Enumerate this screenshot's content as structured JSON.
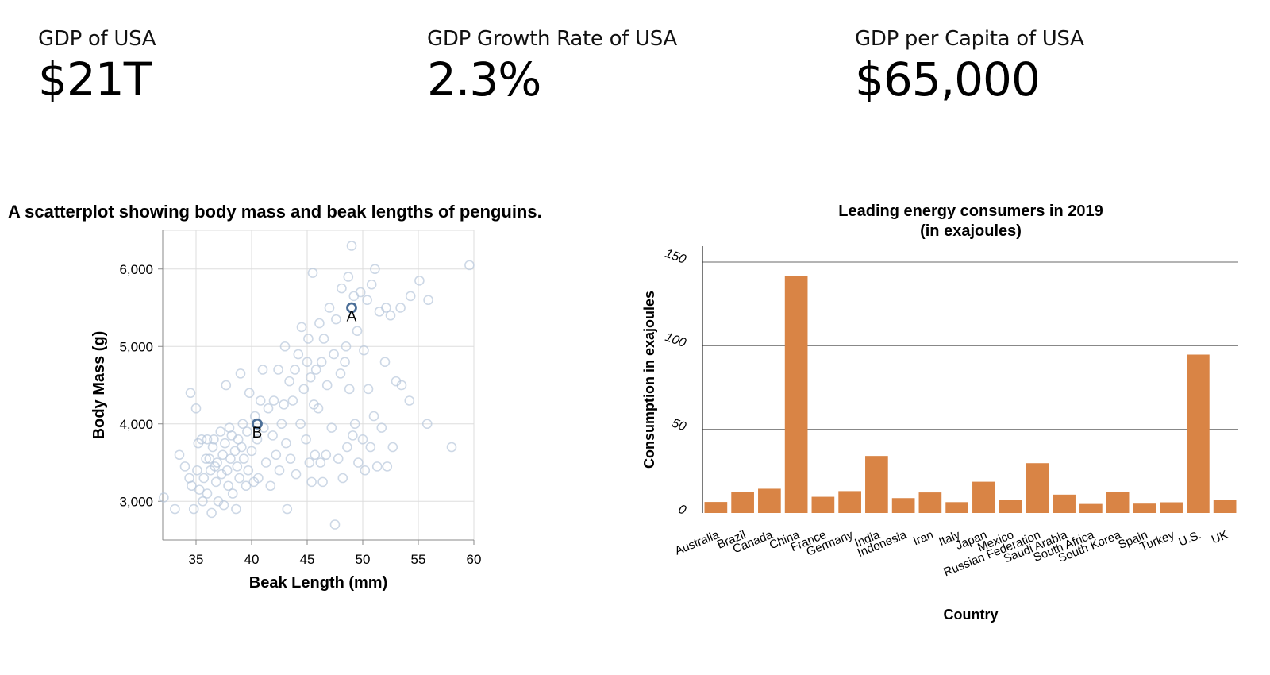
{
  "kpis": [
    {
      "label": "GDP of USA",
      "value": "$21T"
    },
    {
      "label": "GDP Growth Rate of USA",
      "value": "2.3%"
    },
    {
      "label": "GDP per Capita of USA",
      "value": "$65,000"
    }
  ],
  "colors": {
    "scatter_point": "#b8c8dc",
    "scatter_highlight": "#4c6f98",
    "bar": "#d98445",
    "grid": "#dddddd",
    "bar_grid": "#888888"
  },
  "chart_data": [
    {
      "type": "scatter",
      "title": "A scatterplot showing body mass and beak lengths of penguins.",
      "xlabel": "Beak Length (mm)",
      "ylabel": "Body Mass (g)",
      "xlim": [
        32,
        60
      ],
      "ylim": [
        2500,
        6500
      ],
      "xticks": [
        35,
        40,
        45,
        50,
        55,
        60
      ],
      "yticks": [
        3000,
        4000,
        5000,
        6000
      ],
      "ytick_labels": [
        "3,000",
        "4,000",
        "5,000",
        "6,000"
      ],
      "grid": true,
      "highlights": [
        {
          "label": "A",
          "x": 49,
          "y": 5500
        },
        {
          "label": "B",
          "x": 40.5,
          "y": 4000
        }
      ],
      "points": [
        [
          32.1,
          3050
        ],
        [
          33.1,
          2900
        ],
        [
          33.5,
          3600
        ],
        [
          34.0,
          3450
        ],
        [
          34.4,
          3300
        ],
        [
          34.5,
          4400
        ],
        [
          34.6,
          3200
        ],
        [
          34.8,
          2900
        ],
        [
          35.0,
          4200
        ],
        [
          35.1,
          3400
        ],
        [
          35.2,
          3750
        ],
        [
          35.3,
          3150
        ],
        [
          35.5,
          3800
        ],
        [
          35.6,
          3000
        ],
        [
          35.7,
          3300
        ],
        [
          35.9,
          3550
        ],
        [
          36.0,
          3800
        ],
        [
          36.0,
          3100
        ],
        [
          36.2,
          3550
        ],
        [
          36.3,
          3400
        ],
        [
          36.4,
          2850
        ],
        [
          36.5,
          3700
        ],
        [
          36.6,
          3800
        ],
        [
          36.7,
          3450
        ],
        [
          36.8,
          3250
        ],
        [
          36.9,
          3500
        ],
        [
          37.0,
          3000
        ],
        [
          37.2,
          3900
        ],
        [
          37.3,
          3350
        ],
        [
          37.4,
          3600
        ],
        [
          37.5,
          2950
        ],
        [
          37.6,
          3750
        ],
        [
          37.7,
          4500
        ],
        [
          37.8,
          3400
        ],
        [
          37.9,
          3200
        ],
        [
          38.0,
          3950
        ],
        [
          38.1,
          3550
        ],
        [
          38.2,
          3850
        ],
        [
          38.3,
          3100
        ],
        [
          38.5,
          3650
        ],
        [
          38.6,
          2900
        ],
        [
          38.7,
          3450
        ],
        [
          38.8,
          3800
        ],
        [
          38.9,
          3300
        ],
        [
          39.0,
          4650
        ],
        [
          39.1,
          3700
        ],
        [
          39.2,
          4000
        ],
        [
          39.3,
          3550
        ],
        [
          39.5,
          3200
        ],
        [
          39.6,
          3900
        ],
        [
          39.7,
          3400
        ],
        [
          39.8,
          4400
        ],
        [
          40.0,
          3650
        ],
        [
          40.2,
          3250
        ],
        [
          40.3,
          4100
        ],
        [
          40.5,
          3800
        ],
        [
          40.6,
          3300
        ],
        [
          40.8,
          4300
        ],
        [
          41.0,
          4700
        ],
        [
          41.1,
          3950
        ],
        [
          41.3,
          3500
        ],
        [
          41.5,
          4200
        ],
        [
          41.7,
          3200
        ],
        [
          41.9,
          3850
        ],
        [
          42.0,
          4300
        ],
        [
          42.2,
          3600
        ],
        [
          42.4,
          4700
        ],
        [
          42.5,
          3400
        ],
        [
          42.7,
          4000
        ],
        [
          42.9,
          4250
        ],
        [
          43.0,
          5000
        ],
        [
          43.1,
          3750
        ],
        [
          43.2,
          2900
        ],
        [
          43.4,
          4550
        ],
        [
          43.5,
          3550
        ],
        [
          43.7,
          4300
        ],
        [
          43.9,
          4700
        ],
        [
          44.0,
          3350
        ],
        [
          44.2,
          4900
        ],
        [
          44.4,
          4000
        ],
        [
          44.5,
          5250
        ],
        [
          44.7,
          4450
        ],
        [
          44.9,
          3800
        ],
        [
          45.0,
          4800
        ],
        [
          45.1,
          5100
        ],
        [
          45.2,
          3500
        ],
        [
          45.3,
          4600
        ],
        [
          45.4,
          3250
        ],
        [
          45.5,
          5950
        ],
        [
          45.6,
          4250
        ],
        [
          45.7,
          3600
        ],
        [
          45.8,
          4700
        ],
        [
          46.0,
          4200
        ],
        [
          46.1,
          5300
        ],
        [
          46.2,
          3500
        ],
        [
          46.3,
          4800
        ],
        [
          46.4,
          3250
        ],
        [
          46.5,
          5100
        ],
        [
          46.7,
          3600
        ],
        [
          46.8,
          4500
        ],
        [
          47.0,
          5500
        ],
        [
          47.2,
          3950
        ],
        [
          47.4,
          4900
        ],
        [
          47.5,
          2700
        ],
        [
          47.6,
          5350
        ],
        [
          47.8,
          3550
        ],
        [
          48.0,
          4650
        ],
        [
          48.1,
          5750
        ],
        [
          48.2,
          3300
        ],
        [
          48.4,
          4800
        ],
        [
          48.5,
          5000
        ],
        [
          48.6,
          3700
        ],
        [
          48.7,
          5900
        ],
        [
          48.8,
          4450
        ],
        [
          49.0,
          6300
        ],
        [
          49.1,
          3850
        ],
        [
          49.2,
          5650
        ],
        [
          49.3,
          4000
        ],
        [
          49.5,
          5200
        ],
        [
          49.6,
          3500
        ],
        [
          49.8,
          5700
        ],
        [
          50.0,
          3800
        ],
        [
          50.1,
          4950
        ],
        [
          50.2,
          3400
        ],
        [
          50.4,
          5600
        ],
        [
          50.5,
          4450
        ],
        [
          50.7,
          3700
        ],
        [
          50.8,
          5800
        ],
        [
          51.0,
          4100
        ],
        [
          51.1,
          6000
        ],
        [
          51.3,
          3450
        ],
        [
          51.5,
          5450
        ],
        [
          51.7,
          3950
        ],
        [
          52.0,
          4800
        ],
        [
          52.1,
          5500
        ],
        [
          52.2,
          3450
        ],
        [
          52.5,
          5400
        ],
        [
          52.7,
          3700
        ],
        [
          53.0,
          4550
        ],
        [
          53.4,
          5500
        ],
        [
          53.5,
          4500
        ],
        [
          54.2,
          4300
        ],
        [
          54.3,
          5650
        ],
        [
          55.1,
          5850
        ],
        [
          55.8,
          4000
        ],
        [
          55.9,
          5600
        ],
        [
          58.0,
          3700
        ],
        [
          59.6,
          6050
        ]
      ]
    },
    {
      "type": "bar",
      "title": [
        "Leading energy consumers in 2019",
        "(in exajoules)"
      ],
      "xlabel": "Country",
      "ylabel": "Consumption in exajoules",
      "ylim": [
        0,
        150
      ],
      "yticks": [
        0,
        50,
        100,
        150
      ],
      "ytick_labels": [
        "0",
        "50",
        "100",
        "150"
      ],
      "grid": true,
      "categories": [
        "Australia",
        "Brazil",
        "Canada",
        "China",
        "France",
        "Germany",
        "India",
        "Indonesia",
        "Iran",
        "Italy",
        "Japan",
        "Mexico",
        "Russian Federation",
        "Saudi Arabia",
        "South Africa",
        "South Korea",
        "Spain",
        "Turkey",
        "U.S.",
        "UK"
      ],
      "values": [
        6.6,
        12.6,
        14.5,
        141.7,
        9.7,
        13.1,
        34.1,
        8.9,
        12.3,
        6.5,
        18.7,
        7.7,
        29.8,
        11.0,
        5.4,
        12.4,
        5.6,
        6.4,
        94.7,
        7.8
      ]
    }
  ]
}
